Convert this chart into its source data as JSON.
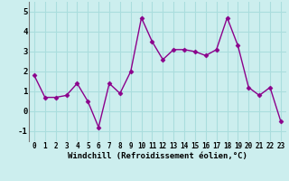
{
  "x": [
    0,
    1,
    2,
    3,
    4,
    5,
    6,
    7,
    8,
    9,
    10,
    11,
    12,
    13,
    14,
    15,
    16,
    17,
    18,
    19,
    20,
    21,
    22,
    23
  ],
  "y": [
    1.8,
    0.7,
    0.7,
    0.8,
    1.4,
    0.5,
    -0.8,
    1.4,
    0.9,
    2.0,
    4.7,
    3.5,
    2.6,
    3.1,
    3.1,
    3.0,
    2.8,
    3.1,
    4.7,
    3.3,
    1.2,
    0.8,
    1.2,
    -0.5
  ],
  "line_color": "#8b008b",
  "marker": "D",
  "marker_size": 2.5,
  "linewidth": 1.0,
  "bg_color": "#cceeee",
  "grid_color": "#aadddd",
  "xlabel": "Windchill (Refroidissement éolien,°C)",
  "xlabel_fontsize": 6.5,
  "xtick_fontsize": 5.5,
  "ytick_fontsize": 6.5,
  "ylim": [
    -1.5,
    5.5
  ],
  "xlim": [
    -0.5,
    23.5
  ],
  "yticks": [
    -1,
    0,
    1,
    2,
    3,
    4,
    5
  ],
  "xticks": [
    0,
    1,
    2,
    3,
    4,
    5,
    6,
    7,
    8,
    9,
    10,
    11,
    12,
    13,
    14,
    15,
    16,
    17,
    18,
    19,
    20,
    21,
    22,
    23
  ]
}
